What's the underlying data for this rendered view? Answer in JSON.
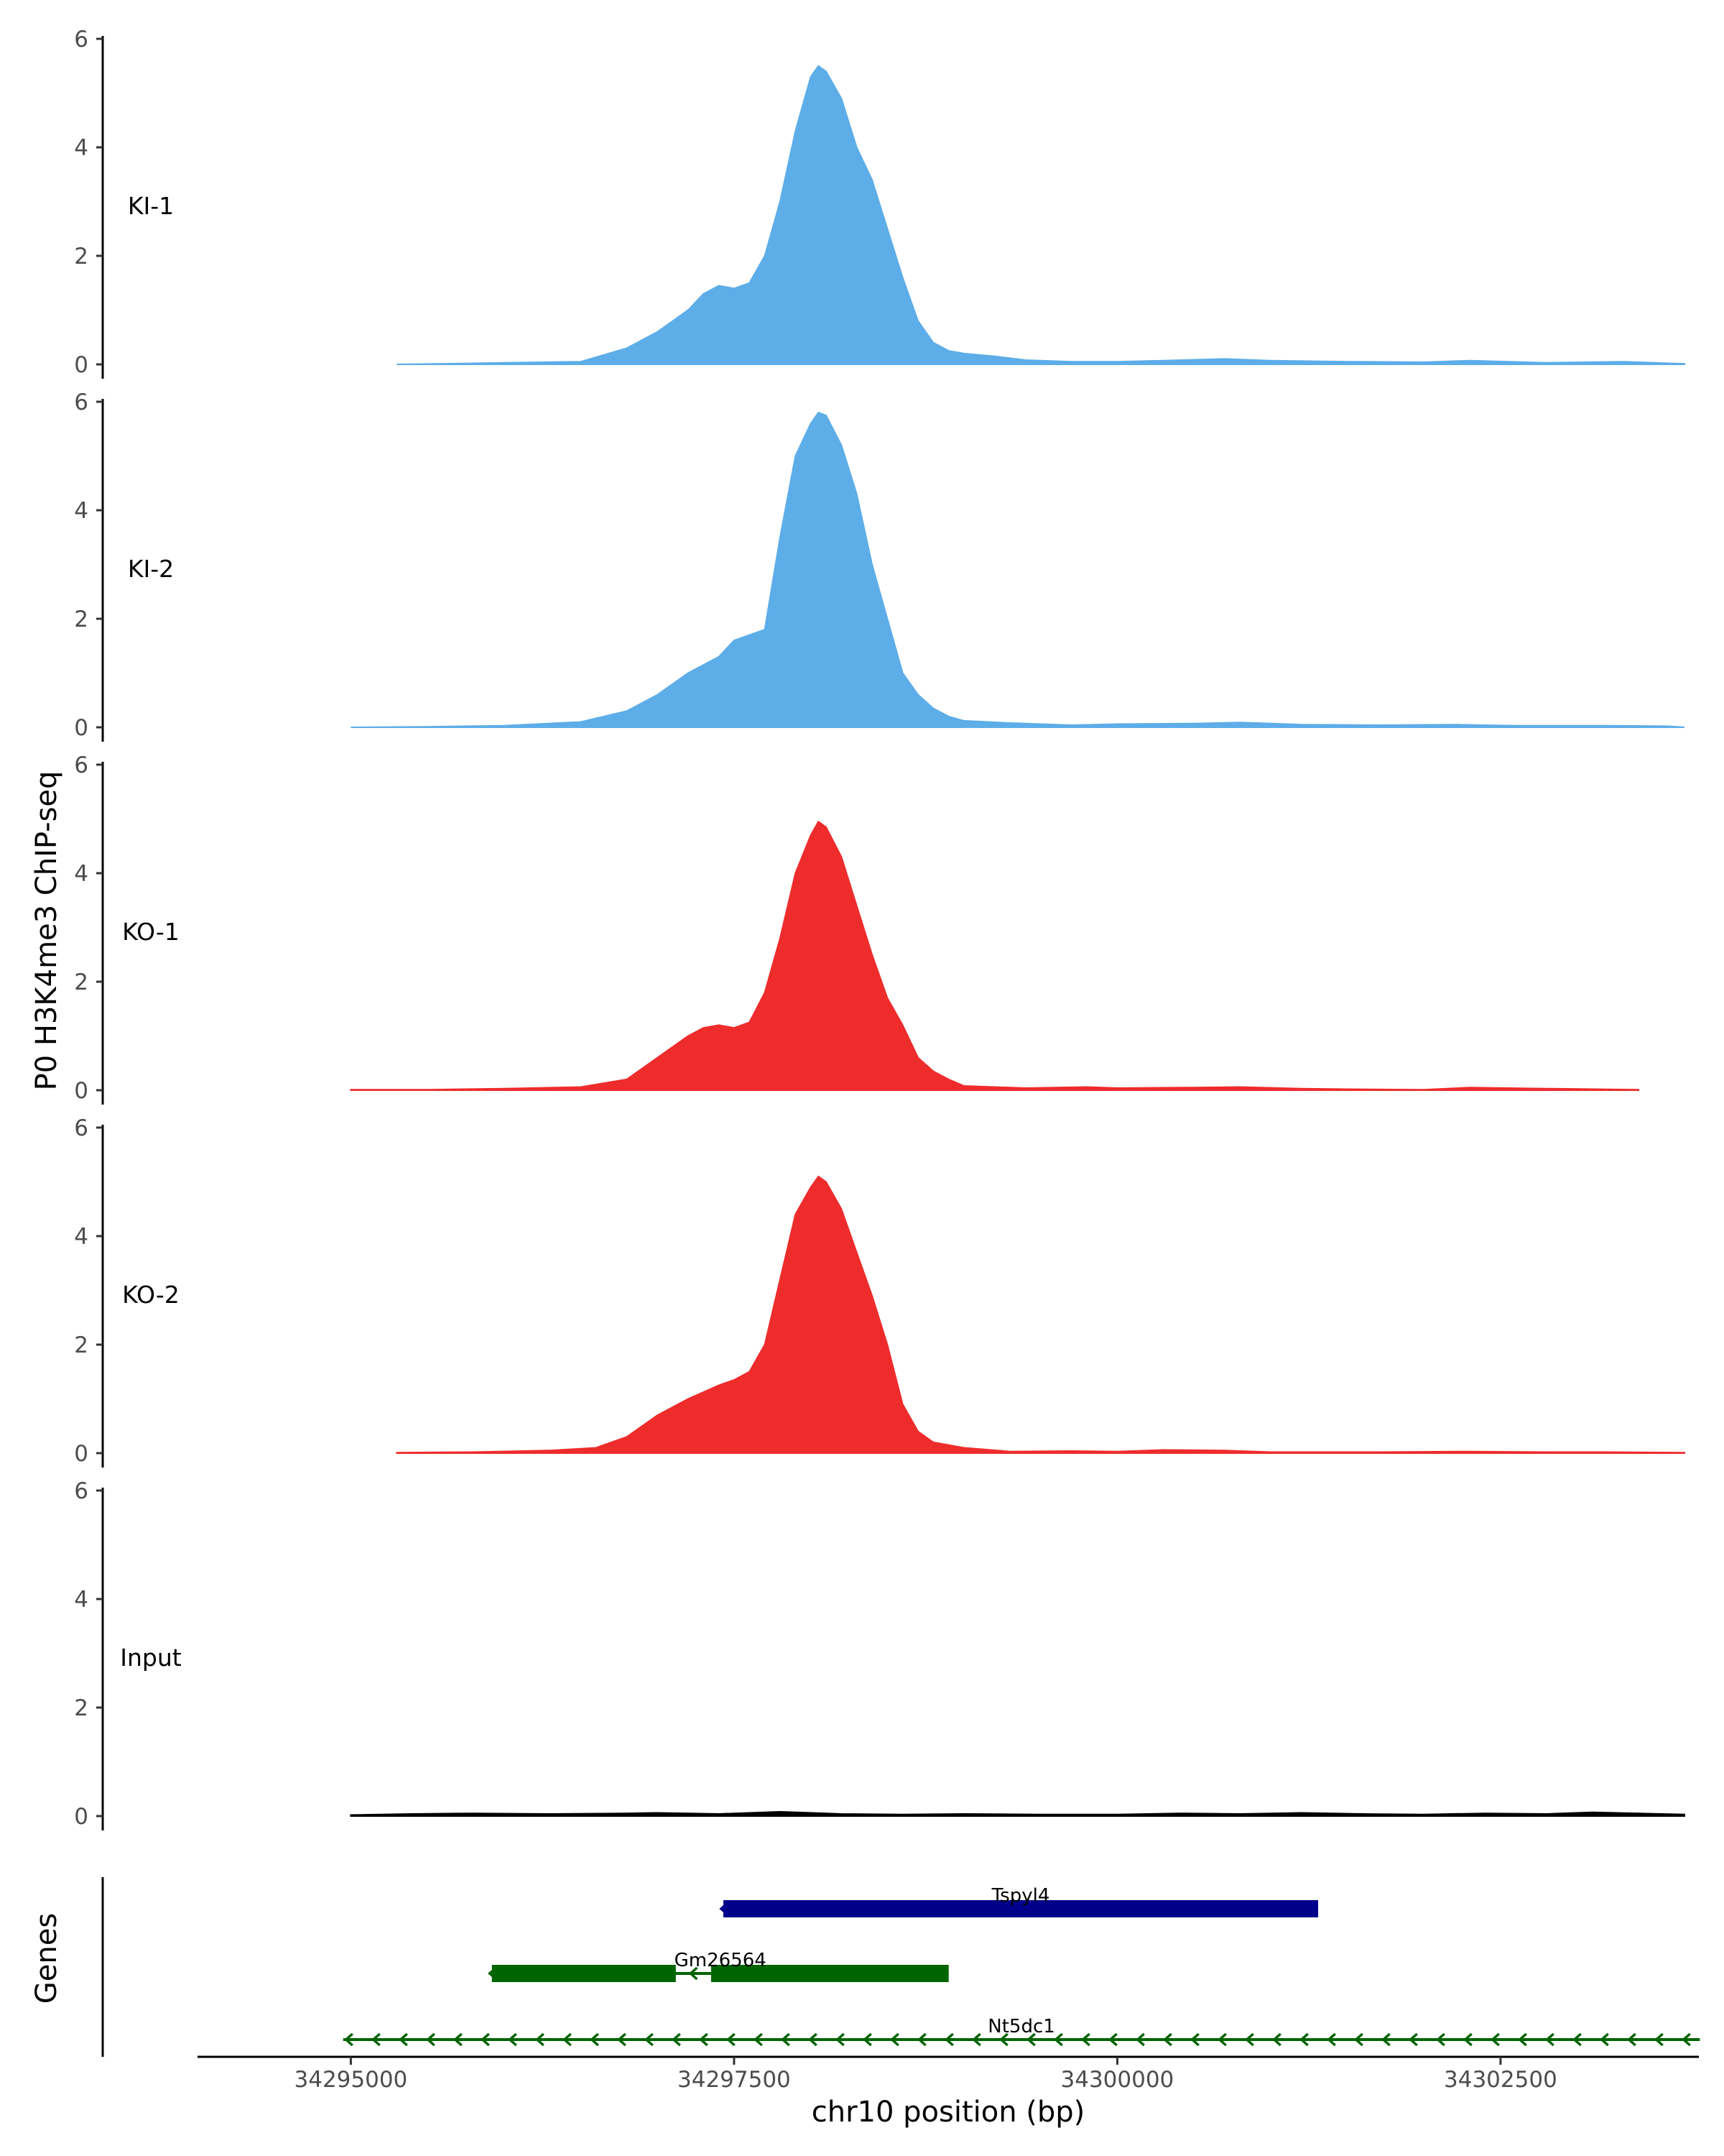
{
  "chart_data": {
    "type": "area",
    "ylabel": "P0 H3K4me3 ChIP-seq",
    "xlabel": "chr10 position (bp)",
    "genes_label": "Genes",
    "xlim": [
      34294000,
      34303700
    ],
    "x_ticks": [
      34295000,
      34297500,
      34300000,
      34302500
    ],
    "x_tick_labels": [
      "34295000",
      "34297500",
      "34300000",
      "34302500"
    ],
    "ylim": [
      0,
      6
    ],
    "y_ticks": [
      0,
      2,
      4,
      6
    ],
    "y_tick_labels": [
      "0",
      "2",
      "4",
      "6"
    ],
    "series": [
      {
        "name": "KI-1",
        "color": "#5dade8",
        "range": [
          34295300,
          34303700
        ],
        "points": [
          [
            34295300,
            0
          ],
          [
            34295800,
            0.02
          ],
          [
            34296000,
            0.03
          ],
          [
            34296500,
            0.05
          ],
          [
            34296800,
            0.3
          ],
          [
            34297000,
            0.6
          ],
          [
            34297200,
            1.0
          ],
          [
            34297300,
            1.3
          ],
          [
            34297400,
            1.45
          ],
          [
            34297500,
            1.4
          ],
          [
            34297600,
            1.5
          ],
          [
            34297700,
            2.0
          ],
          [
            34297800,
            3.0
          ],
          [
            34297900,
            4.3
          ],
          [
            34298000,
            5.3
          ],
          [
            34298050,
            5.5
          ],
          [
            34298100,
            5.4
          ],
          [
            34298200,
            4.9
          ],
          [
            34298300,
            4.0
          ],
          [
            34298400,
            3.4
          ],
          [
            34298500,
            2.5
          ],
          [
            34298600,
            1.6
          ],
          [
            34298700,
            0.8
          ],
          [
            34298800,
            0.4
          ],
          [
            34298900,
            0.25
          ],
          [
            34299000,
            0.2
          ],
          [
            34299200,
            0.15
          ],
          [
            34299400,
            0.08
          ],
          [
            34299700,
            0.05
          ],
          [
            34300000,
            0.05
          ],
          [
            34300300,
            0.07
          ],
          [
            34300700,
            0.1
          ],
          [
            34301000,
            0.07
          ],
          [
            34301500,
            0.05
          ],
          [
            34302000,
            0.04
          ],
          [
            34302300,
            0.07
          ],
          [
            34302800,
            0.03
          ],
          [
            34303300,
            0.05
          ],
          [
            34303700,
            0.01
          ]
        ]
      },
      {
        "name": "KI-2",
        "color": "#5dade8",
        "range": [
          34295000,
          34303700
        ],
        "points": [
          [
            34295000,
            0
          ],
          [
            34295500,
            0.01
          ],
          [
            34296000,
            0.03
          ],
          [
            34296500,
            0.1
          ],
          [
            34296800,
            0.3
          ],
          [
            34297000,
            0.6
          ],
          [
            34297200,
            1.0
          ],
          [
            34297400,
            1.3
          ],
          [
            34297500,
            1.6
          ],
          [
            34297600,
            1.7
          ],
          [
            34297700,
            1.8
          ],
          [
            34297800,
            3.5
          ],
          [
            34297900,
            5.0
          ],
          [
            34298000,
            5.6
          ],
          [
            34298050,
            5.8
          ],
          [
            34298100,
            5.75
          ],
          [
            34298200,
            5.2
          ],
          [
            34298300,
            4.3
          ],
          [
            34298400,
            3.0
          ],
          [
            34298500,
            2.0
          ],
          [
            34298600,
            1.0
          ],
          [
            34298700,
            0.6
          ],
          [
            34298800,
            0.35
          ],
          [
            34298900,
            0.2
          ],
          [
            34299000,
            0.12
          ],
          [
            34299300,
            0.08
          ],
          [
            34299700,
            0.04
          ],
          [
            34300000,
            0.06
          ],
          [
            34300500,
            0.07
          ],
          [
            34300800,
            0.09
          ],
          [
            34301200,
            0.05
          ],
          [
            34301700,
            0.04
          ],
          [
            34302200,
            0.05
          ],
          [
            34302600,
            0.03
          ],
          [
            34303200,
            0.03
          ],
          [
            34303600,
            0.02
          ],
          [
            34303700,
            0
          ]
        ]
      },
      {
        "name": "KO-1",
        "color": "#ee2c2c",
        "range": [
          34295000,
          34303400
        ],
        "points": [
          [
            34295000,
            0.01
          ],
          [
            34295500,
            0.01
          ],
          [
            34296000,
            0.03
          ],
          [
            34296500,
            0.06
          ],
          [
            34296800,
            0.2
          ],
          [
            34297000,
            0.6
          ],
          [
            34297200,
            1.0
          ],
          [
            34297300,
            1.15
          ],
          [
            34297400,
            1.2
          ],
          [
            34297500,
            1.15
          ],
          [
            34297600,
            1.25
          ],
          [
            34297700,
            1.8
          ],
          [
            34297800,
            2.8
          ],
          [
            34297900,
            4.0
          ],
          [
            34298000,
            4.7
          ],
          [
            34298050,
            4.95
          ],
          [
            34298100,
            4.85
          ],
          [
            34298200,
            4.3
          ],
          [
            34298300,
            3.4
          ],
          [
            34298400,
            2.5
          ],
          [
            34298500,
            1.7
          ],
          [
            34298600,
            1.2
          ],
          [
            34298700,
            0.6
          ],
          [
            34298800,
            0.35
          ],
          [
            34298900,
            0.2
          ],
          [
            34299000,
            0.08
          ],
          [
            34299400,
            0.04
          ],
          [
            34299800,
            0.06
          ],
          [
            34300000,
            0.04
          ],
          [
            34300500,
            0.05
          ],
          [
            34300800,
            0.06
          ],
          [
            34301200,
            0.03
          ],
          [
            34301500,
            0.02
          ],
          [
            34302000,
            0.01
          ],
          [
            34302300,
            0.05
          ],
          [
            34302800,
            0.03
          ],
          [
            34303400,
            0.01
          ]
        ]
      },
      {
        "name": "KO-2",
        "color": "#ee2c2c",
        "range": [
          34295300,
          34303700
        ],
        "points": [
          [
            34295300,
            0.01
          ],
          [
            34295800,
            0.02
          ],
          [
            34296300,
            0.05
          ],
          [
            34296600,
            0.1
          ],
          [
            34296800,
            0.3
          ],
          [
            34297000,
            0.7
          ],
          [
            34297200,
            1.0
          ],
          [
            34297400,
            1.25
          ],
          [
            34297500,
            1.35
          ],
          [
            34297600,
            1.5
          ],
          [
            34297700,
            2.0
          ],
          [
            34297800,
            3.2
          ],
          [
            34297900,
            4.4
          ],
          [
            34298000,
            4.9
          ],
          [
            34298050,
            5.1
          ],
          [
            34298100,
            5.0
          ],
          [
            34298200,
            4.5
          ],
          [
            34298300,
            3.7
          ],
          [
            34298400,
            2.9
          ],
          [
            34298500,
            2.0
          ],
          [
            34298600,
            0.9
          ],
          [
            34298700,
            0.4
          ],
          [
            34298800,
            0.2
          ],
          [
            34298900,
            0.15
          ],
          [
            34299000,
            0.1
          ],
          [
            34299300,
            0.03
          ],
          [
            34299700,
            0.04
          ],
          [
            34300000,
            0.03
          ],
          [
            34300300,
            0.06
          ],
          [
            34300700,
            0.05
          ],
          [
            34301000,
            0.02
          ],
          [
            34301700,
            0.02
          ],
          [
            34302300,
            0.03
          ],
          [
            34302800,
            0.02
          ],
          [
            34303200,
            0.02
          ],
          [
            34303700,
            0.01
          ]
        ]
      },
      {
        "name": "Input",
        "color": "#000000",
        "range": [
          34295000,
          34303700
        ],
        "points": [
          [
            34295000,
            0.02
          ],
          [
            34295400,
            0.04
          ],
          [
            34295800,
            0.05
          ],
          [
            34296300,
            0.04
          ],
          [
            34296800,
            0.05
          ],
          [
            34297000,
            0.06
          ],
          [
            34297400,
            0.04
          ],
          [
            34297800,
            0.08
          ],
          [
            34298200,
            0.04
          ],
          [
            34298600,
            0.03
          ],
          [
            34299000,
            0.04
          ],
          [
            34299500,
            0.03
          ],
          [
            34300000,
            0.03
          ],
          [
            34300400,
            0.05
          ],
          [
            34300800,
            0.04
          ],
          [
            34301200,
            0.06
          ],
          [
            34301600,
            0.04
          ],
          [
            34302000,
            0.03
          ],
          [
            34302400,
            0.05
          ],
          [
            34302800,
            0.04
          ],
          [
            34303100,
            0.07
          ],
          [
            34303400,
            0.05
          ],
          [
            34303700,
            0.03
          ]
        ]
      }
    ],
    "genes": [
      {
        "name": "Tspyl4",
        "strand": "-",
        "start": 34297430,
        "end": 34301310,
        "color": "#00008b",
        "exons": [
          [
            34297430,
            34301310
          ]
        ],
        "row": 0
      },
      {
        "name": "Gm26564",
        "strand": "-",
        "start": 34295920,
        "end": 34298900,
        "color": "#006400",
        "exons": [
          [
            34295920,
            34297120
          ],
          [
            34297350,
            34298900
          ]
        ],
        "row": 1
      },
      {
        "name": "Nt5dc1",
        "strand": "-",
        "start": 34294950,
        "end": 34303800,
        "color": "#006400",
        "exons": [],
        "row": 2
      }
    ]
  }
}
